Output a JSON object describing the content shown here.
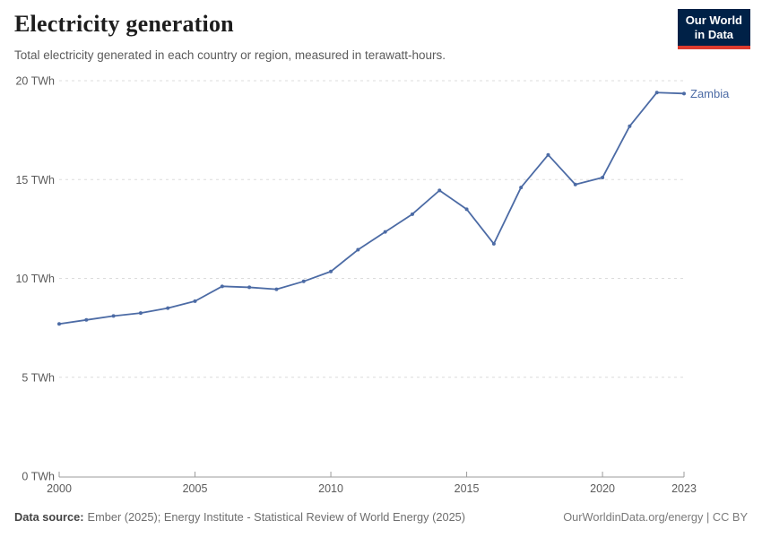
{
  "header": {
    "title": "Electricity generation",
    "subtitle": "Total electricity generated in each country or region, measured in terawatt-hours."
  },
  "logo": {
    "line1": "Our World",
    "line2": "in Data"
  },
  "chart_data": {
    "type": "line",
    "title": "Electricity generation",
    "x": [
      2000,
      2001,
      2002,
      2003,
      2004,
      2005,
      2006,
      2007,
      2008,
      2009,
      2010,
      2011,
      2012,
      2013,
      2014,
      2015,
      2016,
      2017,
      2018,
      2019,
      2020,
      2021,
      2022,
      2023
    ],
    "series": [
      {
        "name": "Zambia",
        "values": [
          7.7,
          7.9,
          8.1,
          8.25,
          8.5,
          8.85,
          9.6,
          9.55,
          9.45,
          9.85,
          10.35,
          11.45,
          12.35,
          13.25,
          14.45,
          13.5,
          11.75,
          14.6,
          16.25,
          14.75,
          15.1,
          17.7,
          19.4,
          19.35
        ]
      }
    ],
    "xlim": [
      2000,
      2023
    ],
    "ylim": [
      0,
      20
    ],
    "x_ticks": [
      2000,
      2005,
      2010,
      2015,
      2020,
      2023
    ],
    "y_ticks": [
      0,
      5,
      10,
      15,
      20
    ],
    "y_tick_suffix": " TWh",
    "grid": "horizontal-dashed",
    "legend": "inline-end-label",
    "xlabel": "",
    "ylabel": ""
  },
  "colors": {
    "line": "#4c6ba5",
    "axis": "#9b9b9b",
    "grid": "#dcdcdc",
    "tick_text": "#5b5b5b",
    "logo_bg": "#002147",
    "logo_accent": "#dc3b2e"
  },
  "footer": {
    "source_label": "Data source:",
    "source_value": "Ember (2025); Energy Institute - Statistical Review of World Energy (2025)",
    "credit": "OurWorldinData.org/energy | CC BY"
  }
}
